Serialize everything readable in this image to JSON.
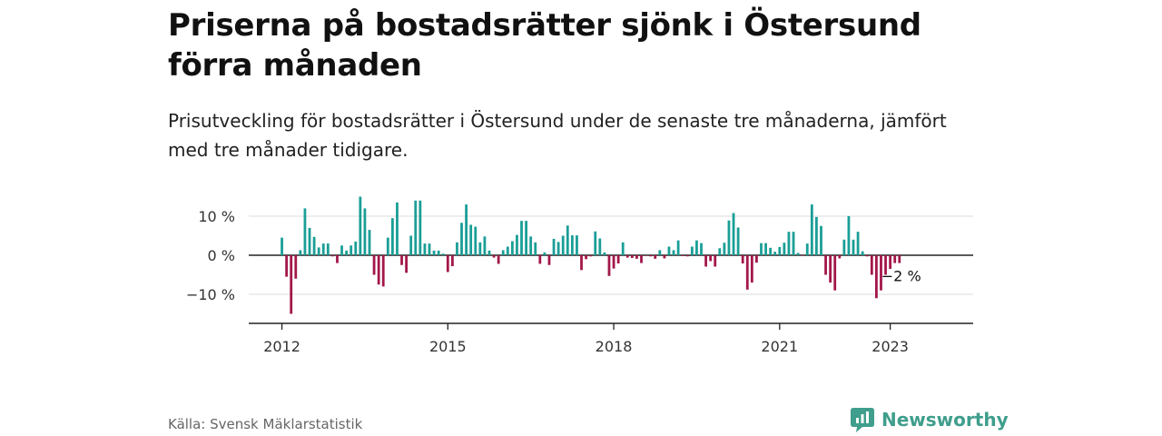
{
  "title": "Priserna på bostadsrätter sjönk i Östersund förra månaden",
  "subtitle": "Prisutveckling för bostadsrätter i Östersund under de senaste tre månaderna, jämfört med tre månader tidigare.",
  "source": "Källa: Svensk Mäklarstatistik",
  "brand": {
    "name": "Newsworthy",
    "icon": "newsworthy-logo-icon"
  },
  "colors": {
    "positive": "#1a9e96",
    "negative": "#a3174a",
    "grid": "#dddddd",
    "axis": "#222222"
  },
  "chart_data": {
    "type": "bar",
    "y_ticks": [
      {
        "value": 10,
        "label": "10 %"
      },
      {
        "value": 0,
        "label": "0 %"
      },
      {
        "value": -10,
        "label": "−10 %"
      }
    ],
    "x_ticks": [
      {
        "value": 2012,
        "label": "2012"
      },
      {
        "value": 2015,
        "label": "2015"
      },
      {
        "value": 2018,
        "label": "2018"
      },
      {
        "value": 2021,
        "label": "2021"
      },
      {
        "value": 2023,
        "label": "2023"
      }
    ],
    "ylim": [
      -17,
      14
    ],
    "xlim": [
      2011.4,
      2024.5
    ],
    "grid": true,
    "last_label": "−2 %",
    "start": "2012-01",
    "values": [
      4.5,
      -5.5,
      -15,
      -6,
      1.3,
      12,
      7,
      4.7,
      2,
      3,
      3,
      -0.3,
      -2,
      2.5,
      1.2,
      2.5,
      3.5,
      15,
      12,
      6.5,
      -5,
      -7.5,
      -8,
      4.5,
      9.5,
      13.5,
      -2.5,
      -4.5,
      5,
      14,
      14,
      3,
      3,
      1.2,
      1.2,
      0.4,
      -4.3,
      -2.8,
      3.3,
      8.3,
      13,
      7.8,
      7.3,
      3.3,
      4.8,
      1.2,
      -0.6,
      -2.2,
      1.3,
      2.2,
      3.6,
      5.2,
      8.8,
      8.8,
      4.8,
      3.3,
      -2.2,
      0.7,
      -2.5,
      4.2,
      3.4,
      5,
      7.6,
      5.1,
      5.1,
      -3.8,
      -1,
      -0.3,
      6.1,
      4.3,
      0.7,
      -5.3,
      -3.4,
      -2.1,
      3.3,
      -0.6,
      -0.7,
      -0.9,
      -2,
      -0.1,
      -0.3,
      -0.9,
      1.3,
      -0.8,
      2.2,
      1.3,
      3.8,
      -0.2,
      -0.3,
      2.2,
      3.8,
      3.1,
      -2.9,
      -1.5,
      -2.9,
      1.8,
      3.2,
      8.9,
      10.8,
      7.1,
      -2.1,
      -8.8,
      -7,
      -1.9,
      3.1,
      3.1,
      1.9,
      0.9,
      2.1,
      3.2,
      6,
      6,
      0.6,
      -0.1,
      3,
      13,
      9.8,
      7.5,
      -5,
      -7,
      -9,
      -0.8,
      4,
      10,
      4,
      6,
      1,
      -0.3,
      -5,
      -11,
      -9,
      -5,
      -3.5,
      -2,
      -2
    ]
  }
}
